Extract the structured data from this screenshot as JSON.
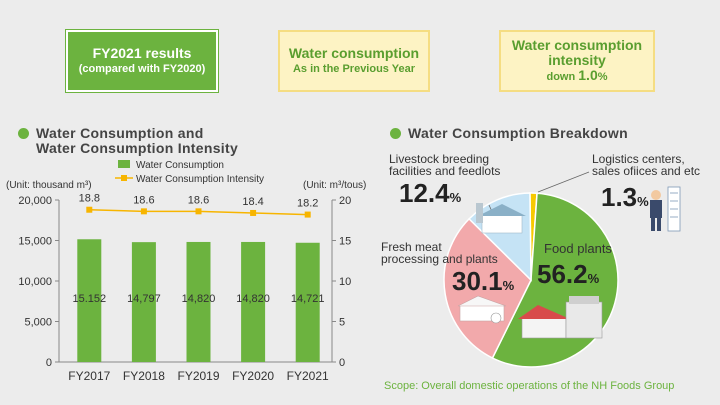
{
  "summary": {
    "box1": {
      "title": "FY2021 results",
      "sub": "(compared with FY2020)"
    },
    "box2": {
      "title": "Water consumption",
      "sub": "As in the Previous Year"
    },
    "box3": {
      "title": "Water consumption intensity",
      "sub_prefix": "down ",
      "sub_value": "1.0",
      "sub_suffix": "%"
    }
  },
  "left_title": {
    "line1": "Water Consumption and",
    "line2": "Water Consumption Intensity"
  },
  "right_title": "Water Consumption Breakdown",
  "footer": "Scope: Overall domestic operations of the NH Foods Group",
  "chart_data": [
    {
      "type": "bar",
      "categories": [
        "FY2017",
        "FY2018",
        "FY2019",
        "FY2020",
        "FY2021"
      ],
      "series": [
        {
          "name": "Water Consumption",
          "type": "bar",
          "axis": "left",
          "values": [
            15152,
            14797,
            14820,
            14820,
            14721
          ],
          "labels": [
            "15.152",
            "14,797",
            "14,820",
            "14,820",
            "14,721"
          ],
          "color": "#6cb33f"
        },
        {
          "name": "Water Consumption Intensity",
          "type": "line",
          "axis": "right",
          "values": [
            18.8,
            18.6,
            18.6,
            18.4,
            18.2
          ],
          "labels": [
            "18.8",
            "18.6",
            "18.6",
            "18.4",
            "18.2"
          ],
          "color": "#f7b500"
        }
      ],
      "left_unit": "(Unit: thousand m³)",
      "right_unit": "(Unit: m³/tous)",
      "ylim_left": [
        0,
        20000
      ],
      "yticks_left": [
        "0",
        "5,000",
        "10,000",
        "15,000",
        "20,000"
      ],
      "ylim_right": [
        0,
        20
      ],
      "yticks_right": [
        "0",
        "5",
        "10",
        "15",
        "20"
      ],
      "legend_placement": "top"
    },
    {
      "type": "pie",
      "slices": [
        {
          "label": "Food plants",
          "value": 56.2,
          "color": "#6cb33f"
        },
        {
          "label": "Fresh meat processing and plants",
          "label_lines": [
            "Fresh meat",
            "processing and plants"
          ],
          "value": 30.1,
          "color": "#f2a9ab"
        },
        {
          "label": "Livestock breeding facilities and feedlots",
          "label_lines": [
            "Livestock breeding",
            "facilities and feedlots"
          ],
          "value": 12.4,
          "color": "#c5e3f5"
        },
        {
          "label": "Logistics centers, sales ofiices and etc",
          "label_lines": [
            "Logistics centers,",
            "sales ofiices and etc"
          ],
          "value": 1.3,
          "color": "#f7c900"
        }
      ],
      "value_suffix": "%"
    }
  ]
}
